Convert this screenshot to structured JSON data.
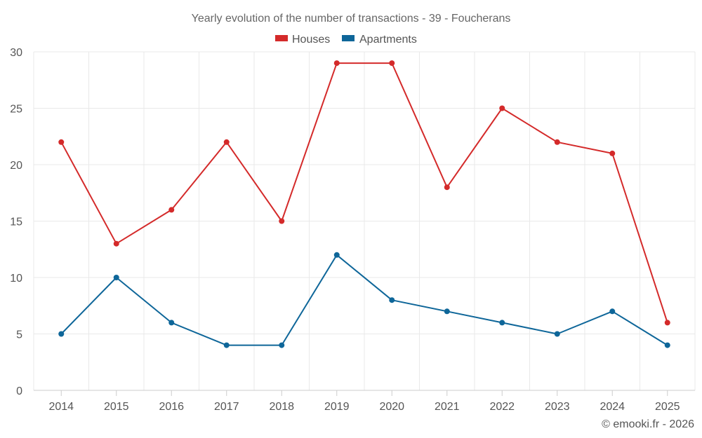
{
  "chart_data": {
    "type": "line",
    "title": "Yearly evolution of the number of transactions - 39 - Foucherans",
    "categories": [
      "2014",
      "2015",
      "2016",
      "2017",
      "2018",
      "2019",
      "2020",
      "2021",
      "2022",
      "2023",
      "2024",
      "2025"
    ],
    "series": [
      {
        "name": "Houses",
        "color": "#d42a2a",
        "values": [
          22,
          13,
          16,
          22,
          15,
          29,
          29,
          18,
          25,
          22,
          21,
          6
        ]
      },
      {
        "name": "Apartments",
        "color": "#0e6699",
        "values": [
          5,
          10,
          6,
          4,
          4,
          12,
          8,
          7,
          6,
          5,
          7,
          4
        ]
      }
    ],
    "ylim": [
      0,
      30
    ],
    "yticks": [
      0,
      5,
      10,
      15,
      20,
      25,
      30
    ],
    "xlabel": "",
    "ylabel": "",
    "grid": true,
    "legend": "top-center"
  },
  "credit": "© emooki.fr - 2026"
}
